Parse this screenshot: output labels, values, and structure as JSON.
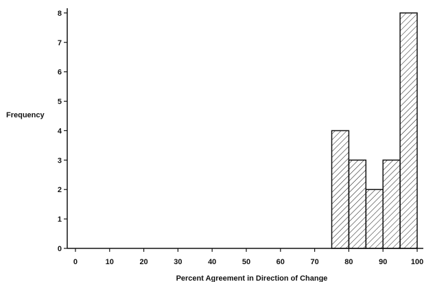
{
  "chart_data": {
    "type": "bar",
    "xlabel": "Percent Agreement in Direction of Change",
    "ylabel": "Frequency",
    "xlim": [
      -2,
      102
    ],
    "ylim": [
      0,
      8.3
    ],
    "xticks": [
      0,
      10,
      20,
      30,
      40,
      50,
      60,
      70,
      80,
      90,
      100
    ],
    "yticks": [
      0,
      1,
      2,
      3,
      4,
      5,
      6,
      7,
      8
    ],
    "bin_width": 5,
    "fill_pattern": "diagonal-hatch",
    "bars": [
      {
        "x_start": 75,
        "x_end": 80,
        "value": 4
      },
      {
        "x_start": 80,
        "x_end": 85,
        "value": 3
      },
      {
        "x_start": 85,
        "x_end": 90,
        "value": 2
      },
      {
        "x_start": 90,
        "x_end": 95,
        "value": 3
      },
      {
        "x_start": 95,
        "x_end": 100,
        "value": 8
      }
    ],
    "grid": false,
    "colors": {
      "stroke": "#111111",
      "hatch": "#111111",
      "background": "#ffffff"
    }
  }
}
